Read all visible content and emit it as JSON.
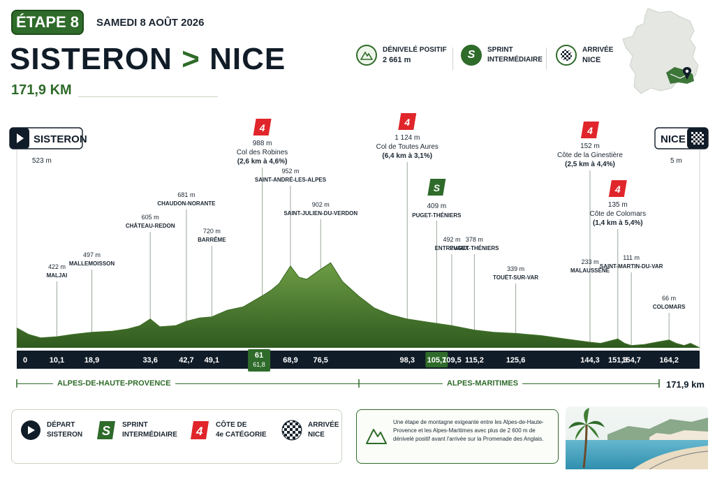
{
  "header": {
    "stage_label": "ÉTAPE 8",
    "date": "SAMEDI 8 AOÛT 2026",
    "start": "SISTERON",
    "separator": ">",
    "finish": "NICE",
    "distance": "171,9 KM"
  },
  "info": {
    "elevation_title": "DÉNIVELÉ POSITIF",
    "elevation_value": "2 661 m",
    "sprint_title": "SPRINT",
    "sprint_sub": "INTERMÉDIAIRE",
    "sprint_icon": "S",
    "finish_title": "ARRIVÉE",
    "finish_value": "NICE"
  },
  "profile": {
    "start_label": "SISTERON",
    "start_alt": "523 m",
    "finish_label": "NICE",
    "finish_alt": "5 m",
    "x_max_km": 171.9,
    "km_ticks": [
      {
        "km": 0,
        "label": "0"
      },
      {
        "km": 10.1,
        "label": "10,1"
      },
      {
        "km": 18.9,
        "label": "18,9"
      },
      {
        "km": 33.6,
        "label": "33,6"
      },
      {
        "km": 42.7,
        "label": "42,7"
      },
      {
        "km": 49.1,
        "label": "49,1"
      },
      {
        "km": 61,
        "label": "61",
        "sub": "61,8",
        "highlight": true
      },
      {
        "km": 68.9,
        "label": "68,9"
      },
      {
        "km": 76.5,
        "label": "76,5"
      },
      {
        "km": 98.3,
        "label": "98,3"
      },
      {
        "km": 105.7,
        "label": "105,7",
        "highlight": true
      },
      {
        "km": 109.5,
        "label": "109,5"
      },
      {
        "km": 115.2,
        "label": "115,2"
      },
      {
        "km": 125.6,
        "label": "125,6"
      },
      {
        "km": 144.3,
        "label": "144,3"
      },
      {
        "km": 151.3,
        "label": "151,3"
      },
      {
        "km": 154.7,
        "label": "154,7"
      },
      {
        "km": 164.2,
        "label": "164,2"
      }
    ],
    "waypoints": [
      {
        "km": 10.1,
        "alt": "422 m",
        "name": "MALJAI"
      },
      {
        "km": 18.9,
        "alt": "497 m",
        "name": "MALLEMOISSON"
      },
      {
        "km": 33.6,
        "alt": "605 m",
        "name": "CHÂTEAU-REDON"
      },
      {
        "km": 42.7,
        "alt": "681 m",
        "name": "CHAUDON-NORANTE"
      },
      {
        "km": 49.1,
        "alt": "720 m",
        "name": "BARRÊME"
      },
      {
        "km": 68.9,
        "alt": "952 m",
        "name": "SAINT-ANDRÉ-LES-ALPES"
      },
      {
        "km": 76.5,
        "alt": "902 m",
        "name": "SAINT-JULIEN-DU-VERDON"
      },
      {
        "km": 109.5,
        "alt": "492 m",
        "name": "ENTREVAUX"
      },
      {
        "km": 115.2,
        "alt": "378 m",
        "name": "PUGET-THÉNIERS"
      },
      {
        "km": 125.6,
        "alt": "339 m",
        "name": "TOUËT-SUR-VAR"
      },
      {
        "km": 144.3,
        "alt": "233 m",
        "name": "MALAUSSÈNE"
      },
      {
        "km": 154.7,
        "alt": "111 m",
        "name": "SAINT-MARTIN-DU-VAR"
      },
      {
        "km": 164.2,
        "alt": "66 m",
        "name": "COLOMARS"
      }
    ],
    "climbs": [
      {
        "km": 61.8,
        "cat": "4",
        "alt": "988 m",
        "name": "Col des Robines",
        "detail": "(2,6 km à 4,6%)"
      },
      {
        "km": 98.3,
        "cat": "4",
        "alt": "1 124 m",
        "name": "Col de Toutes Aures",
        "detail": "(6,4 km à 3,1%)"
      },
      {
        "km": 144.3,
        "cat": "4",
        "alt": "152 m",
        "name": "Côte de la Ginestière",
        "detail": "(2,5 km à 4,4%)"
      },
      {
        "km": 151.3,
        "cat": "4",
        "alt": "135 m",
        "name": "Côte de Colomars",
        "detail": "(1,4 km à 5,4%)"
      }
    ],
    "sprint": {
      "km": 105.7,
      "icon": "S",
      "alt": "409 m",
      "name": "PUGET-THÉNIERS"
    },
    "elevation_shape": [
      [
        0,
        0.18
      ],
      [
        3,
        0.12
      ],
      [
        6,
        0.09
      ],
      [
        10.1,
        0.1
      ],
      [
        14,
        0.12
      ],
      [
        18.9,
        0.14
      ],
      [
        24,
        0.15
      ],
      [
        28,
        0.17
      ],
      [
        31,
        0.2
      ],
      [
        33.6,
        0.26
      ],
      [
        36,
        0.19
      ],
      [
        40,
        0.2
      ],
      [
        42.7,
        0.24
      ],
      [
        46,
        0.27
      ],
      [
        49.1,
        0.28
      ],
      [
        53,
        0.34
      ],
      [
        57,
        0.37
      ],
      [
        61.8,
        0.47
      ],
      [
        64,
        0.52
      ],
      [
        66,
        0.58
      ],
      [
        68.9,
        0.74
      ],
      [
        71,
        0.64
      ],
      [
        73,
        0.62
      ],
      [
        76.5,
        0.71
      ],
      [
        79,
        0.77
      ],
      [
        82,
        0.6
      ],
      [
        86,
        0.47
      ],
      [
        90,
        0.36
      ],
      [
        94,
        0.3
      ],
      [
        98.3,
        0.26
      ],
      [
        102,
        0.24
      ],
      [
        105.7,
        0.22
      ],
      [
        109.5,
        0.2
      ],
      [
        115.2,
        0.16
      ],
      [
        120,
        0.14
      ],
      [
        125.6,
        0.13
      ],
      [
        132,
        0.11
      ],
      [
        138,
        0.08
      ],
      [
        144.3,
        0.05
      ],
      [
        147,
        0.04
      ],
      [
        151.3,
        0.08
      ],
      [
        153,
        0.04
      ],
      [
        154.7,
        0.02
      ],
      [
        158,
        0.03
      ],
      [
        161,
        0.05
      ],
      [
        164.2,
        0.07
      ],
      [
        166,
        0.04
      ],
      [
        168,
        0.02
      ],
      [
        169.6,
        0.04
      ],
      [
        171.9,
        0.0
      ]
    ]
  },
  "departments": {
    "left": "ALPES-DE-HAUTE-PROVENCE",
    "right": "ALPES-MARITIMES",
    "total": "171,9 km"
  },
  "legend": {
    "depart_title": "DÉPART",
    "depart_value": "SISTERON",
    "sprint_title": "SPRINT",
    "sprint_sub": "INTERMÉDIAIRE",
    "cote_title": "CÔTE DE",
    "cote_sub": "4e CATÉGORIE",
    "cote_icon": "4",
    "arrivee_title": "ARRIVÉE",
    "arrivee_value": "NICE"
  },
  "note": {
    "text": "Une étape de montagne exigeante entre les Alpes-de-Haute-Provence et les Alpes-Maritimes avec plus de 2 600 m de dénivelé positif avant l'arrivée sur la Promenade des Anglais."
  },
  "colors": {
    "green": "#2f6b2a",
    "terrain": "#5f8f3c",
    "navy": "#101c28",
    "red": "#e0262b"
  }
}
